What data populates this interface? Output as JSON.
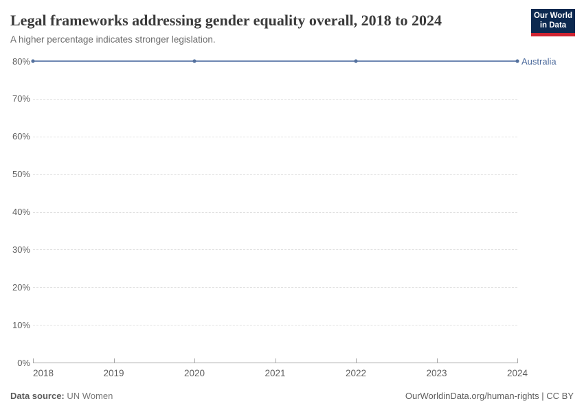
{
  "header": {
    "title": "Legal frameworks addressing gender equality overall, 2018 to 2024",
    "subtitle": "A higher percentage indicates stronger legislation.",
    "logo": {
      "line1": "Our World",
      "line2": "in Data",
      "bg_color": "#0c2950",
      "accent_color": "#cf2331"
    }
  },
  "chart_data": {
    "type": "line",
    "title": "Legal frameworks addressing gender equality overall, 2018 to 2024",
    "subtitle": "A higher percentage indicates stronger legislation.",
    "xlabel": "",
    "ylabel": "",
    "xlim": [
      2018,
      2024
    ],
    "ylim": [
      0,
      80
    ],
    "xticks": [
      2018,
      2019,
      2020,
      2021,
      2022,
      2023,
      2024
    ],
    "yticks": [
      0,
      10,
      20,
      30,
      40,
      50,
      60,
      70,
      80
    ],
    "y_tick_suffix": "%",
    "grid": "horizontal-dashed",
    "legend_position": "right-of-line-end",
    "series": [
      {
        "name": "Australia",
        "x": [
          2018,
          2020,
          2022,
          2024
        ],
        "values": [
          80,
          80,
          80,
          80
        ],
        "color": "#4c6a9c",
        "line_color": "#6e87b2",
        "point_color": "#54719e"
      }
    ]
  },
  "footer": {
    "source_label": "Data source:",
    "source_value": "UN Women",
    "credit": "OurWorldinData.org/human-rights | CC BY"
  }
}
